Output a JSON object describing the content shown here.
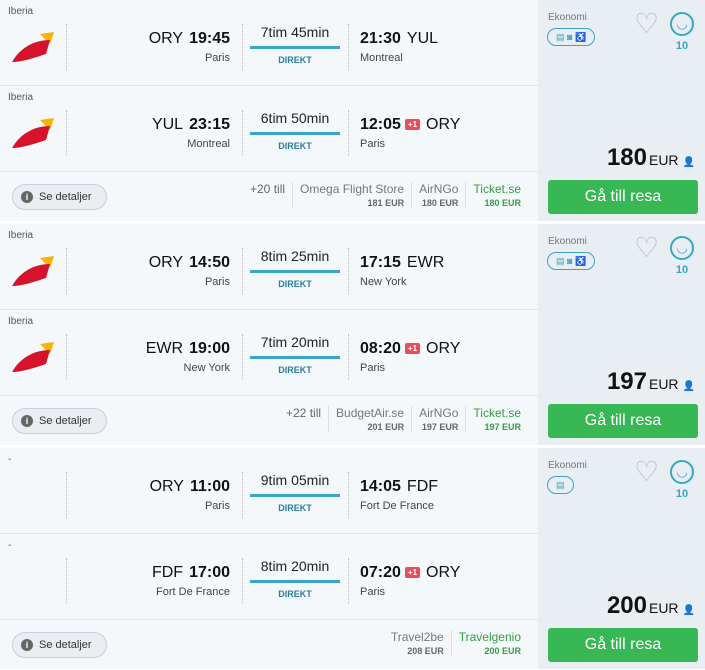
{
  "results": [
    {
      "legs": [
        {
          "airline": "Iberia",
          "from": "ORY",
          "dep": "19:45",
          "from_city": "Paris",
          "duration": "7tim 45min",
          "stops": "DIREKT",
          "arr": "21:30",
          "to": "YUL",
          "to_city": "Montreal",
          "plus": ""
        },
        {
          "airline": "Iberia",
          "from": "YUL",
          "dep": "23:15",
          "from_city": "Montreal",
          "duration": "6tim 50min",
          "stops": "DIREKT",
          "arr": "12:05",
          "to": "ORY",
          "to_city": "Paris",
          "plus": "+1"
        }
      ],
      "details": "Se detaljer",
      "more": "+20 till",
      "providers": [
        {
          "name": "Omega Flight Store",
          "price": "181 EUR"
        },
        {
          "name": "AirNGo",
          "price": "180 EUR"
        },
        {
          "name": "Ticket.se",
          "price": "180 EUR",
          "best": true
        }
      ],
      "class": "Ekonomi",
      "amenities": "▤ ◙ ♿",
      "score": "10",
      "price": "180",
      "currency": "EUR",
      "cta": "Gå till resa"
    },
    {
      "legs": [
        {
          "airline": "Iberia",
          "from": "ORY",
          "dep": "14:50",
          "from_city": "Paris",
          "duration": "8tim 25min",
          "stops": "DIREKT",
          "arr": "17:15",
          "to": "EWR",
          "to_city": "New York",
          "plus": ""
        },
        {
          "airline": "Iberia",
          "from": "EWR",
          "dep": "19:00",
          "from_city": "New York",
          "duration": "7tim 20min",
          "stops": "DIREKT",
          "arr": "08:20",
          "to": "ORY",
          "to_city": "Paris",
          "plus": "+1"
        }
      ],
      "details": "Se detaljer",
      "more": "+22 till",
      "providers": [
        {
          "name": "BudgetAir.se",
          "price": "201 EUR"
        },
        {
          "name": "AirNGo",
          "price": "197 EUR"
        },
        {
          "name": "Ticket.se",
          "price": "197 EUR",
          "best": true
        }
      ],
      "class": "Ekonomi",
      "amenities": "▤ ◙ ♿",
      "score": "10",
      "price": "197",
      "currency": "EUR",
      "cta": "Gå till resa"
    },
    {
      "legs": [
        {
          "airline": "-",
          "from": "ORY",
          "dep": "11:00",
          "from_city": "Paris",
          "duration": "9tim 05min",
          "stops": "DIREKT",
          "arr": "14:05",
          "to": "FDF",
          "to_city": "Fort De France",
          "plus": ""
        },
        {
          "airline": "-",
          "from": "FDF",
          "dep": "17:00",
          "from_city": "Fort De France",
          "duration": "8tim 20min",
          "stops": "DIREKT",
          "arr": "07:20",
          "to": "ORY",
          "to_city": "Paris",
          "plus": "+1"
        }
      ],
      "details": "Se detaljer",
      "more": "",
      "providers": [
        {
          "name": "Travel2be",
          "price": "208 EUR"
        },
        {
          "name": "Travelgenio",
          "price": "200 EUR",
          "best": true
        }
      ],
      "class": "Ekonomi",
      "amenities": "▤",
      "score": "10",
      "price": "200",
      "currency": "EUR",
      "cta": "Gå till resa"
    }
  ],
  "colors": {
    "accent": "#3aa5c8",
    "cta": "#38b854",
    "best": "#2e9e47",
    "plus": "#e84b5a"
  }
}
